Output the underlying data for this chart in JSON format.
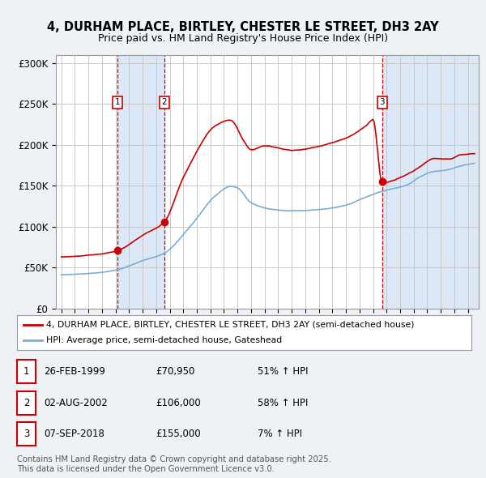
{
  "title_line1": "4, DURHAM PLACE, BIRTLEY, CHESTER LE STREET, DH3 2AY",
  "title_line2": "Price paid vs. HM Land Registry's House Price Index (HPI)",
  "ylabel_ticks": [
    "£0",
    "£50K",
    "£100K",
    "£150K",
    "£200K",
    "£250K",
    "£300K"
  ],
  "ytick_values": [
    0,
    50000,
    100000,
    150000,
    200000,
    250000,
    300000
  ],
  "ylim": [
    0,
    310000
  ],
  "xlim_start": 1994.6,
  "xlim_end": 2025.8,
  "sale_dates": [
    1999.15,
    2002.6,
    2018.68
  ],
  "sale_prices": [
    70950,
    106000,
    155000
  ],
  "sale_labels": [
    "1",
    "2",
    "3"
  ],
  "red_color": "#cc0000",
  "blue_color": "#7aadd4",
  "shade_color": "#dce8f5",
  "legend_line1": "4, DURHAM PLACE, BIRTLEY, CHESTER LE STREET, DH3 2AY (semi-detached house)",
  "legend_line2": "HPI: Average price, semi-detached house, Gateshead",
  "table_rows": [
    {
      "num": "1",
      "date": "26-FEB-1999",
      "price": "£70,950",
      "change": "51% ↑ HPI"
    },
    {
      "num": "2",
      "date": "02-AUG-2002",
      "price": "£106,000",
      "change": "58% ↑ HPI"
    },
    {
      "num": "3",
      "date": "07-SEP-2018",
      "price": "£155,000",
      "change": "7% ↑ HPI"
    }
  ],
  "footnote": "Contains HM Land Registry data © Crown copyright and database right 2025.\nThis data is licensed under the Open Government Licence v3.0.",
  "background_color": "#eef2f7",
  "plot_bg_color": "#ffffff"
}
